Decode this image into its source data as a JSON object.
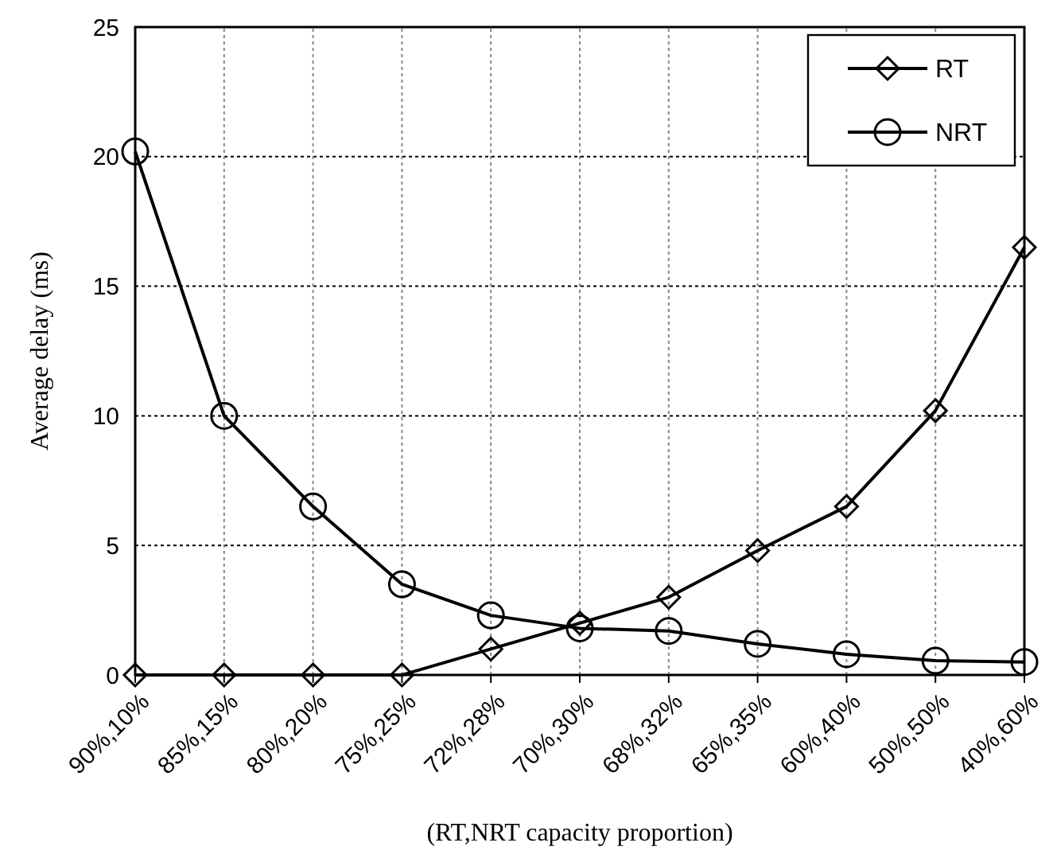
{
  "chart_data": {
    "type": "line",
    "xlabel": "(RT,NRT capacity proportion)",
    "ylabel": "Average delay (ms)",
    "categories": [
      "90%,10%",
      "85%,15%",
      "80%,20%",
      "75%,25%",
      "72%,28%",
      "70%,30%",
      "68%,32%",
      "65%,35%",
      "60%,40%",
      "50%,50%",
      "40%,60%"
    ],
    "series": [
      {
        "name": "RT",
        "color": "#000000",
        "marker": "diamond",
        "values": [
          0,
          0,
          0,
          0,
          1.0,
          2.0,
          3.0,
          4.8,
          6.5,
          10.2,
          16.5
        ]
      },
      {
        "name": "NRT",
        "color": "#000000",
        "marker": "circle",
        "values": [
          20.2,
          10,
          6.5,
          3.5,
          2.3,
          1.8,
          1.7,
          1.2,
          0.8,
          0.55,
          0.5
        ]
      }
    ],
    "ylim": [
      0,
      25
    ],
    "yticks": [
      0,
      5,
      10,
      15,
      20,
      25
    ],
    "grid": true,
    "legend": "top right",
    "line_style": "solid"
  }
}
